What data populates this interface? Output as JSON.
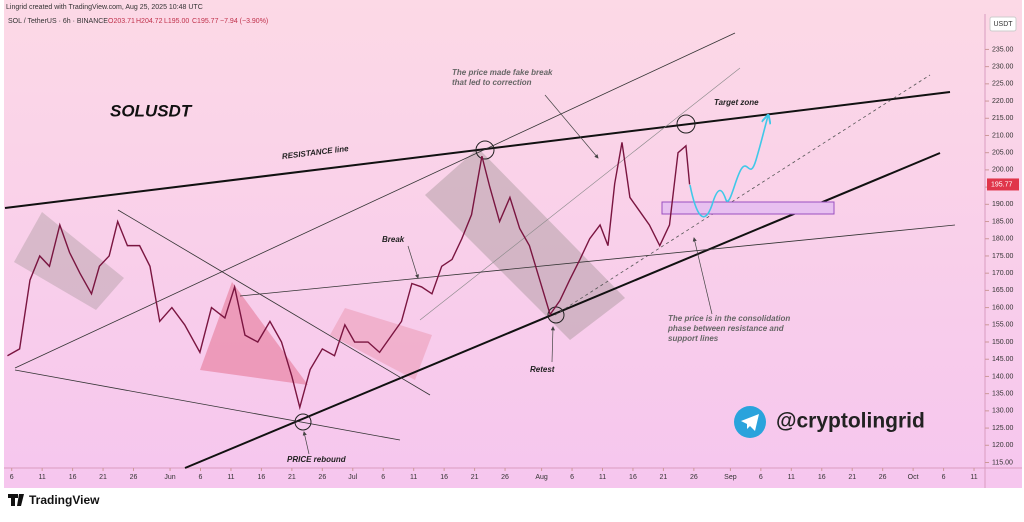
{
  "chart_data": {
    "type": "line",
    "header": "Lingrid created with TradingView.com, Aug 25, 2025 10:48 UTC",
    "symbol_line": "SOL / TetherUS · 6h · BINANCE",
    "ohlc": [
      "O203.71",
      "H204.72",
      "L195.00",
      "C195.77",
      "−7.94 (−3.90%)"
    ],
    "currency": "USDT",
    "last_price": {
      "value": 195.77,
      "label": "195.77"
    },
    "annotations": {
      "symbol": "SOLUSDT",
      "resistance": "RESISTANCE line",
      "fake_break": [
        "The price made fake break",
        "that led to correction"
      ],
      "target": "Target zone",
      "break": "Break",
      "retest": "Retest",
      "rebound": "PRICE rebound",
      "consolidation": [
        "The price is in the consolidation",
        "phase between resistance and",
        "support lines"
      ]
    },
    "watermark": "@cryptolingrid",
    "brand": "TradingView",
    "color": "#7a1540",
    "grid": false,
    "x": [
      4.3,
      6.3,
      8,
      9.6,
      11.2,
      12.9,
      14.5,
      16.2,
      18.1,
      19.4,
      21,
      22.4,
      24,
      26,
      27.7,
      29.3,
      31.3,
      33.4,
      35.9,
      37.8,
      40,
      41.6,
      43.3,
      45.4,
      47.4,
      49.3,
      51,
      52.3,
      54,
      56,
      58,
      59.7,
      61.3,
      63.5,
      65.4,
      67.4,
      69,
      70.7,
      72.3,
      74,
      75.6,
      77.3,
      78.9,
      80.5,
      82.2,
      83.5,
      85.1,
      86.8,
      88.4,
      90,
      91.7,
      93.4,
      95,
      96.6,
      98.3,
      99.9,
      101.6,
      102.9,
      104,
      105.2,
      106.5,
      108.1,
      109.7,
      111.4,
      113,
      114.4,
      115.7,
      116.3
    ],
    "values": [
      146,
      148,
      168,
      175,
      172,
      184,
      176,
      170,
      164,
      172,
      175,
      185,
      178,
      178,
      172,
      156,
      160,
      155,
      147,
      160,
      157,
      166,
      152,
      150,
      156,
      150,
      140,
      131,
      142,
      148,
      146,
      155,
      150,
      150,
      147,
      152,
      156,
      167,
      166,
      164,
      172,
      174,
      180,
      187,
      204,
      195,
      185,
      192,
      183,
      178,
      168,
      158,
      162,
      168,
      174,
      180,
      184,
      178,
      196,
      208,
      192,
      188,
      184,
      178,
      184,
      205,
      207,
      195.77
    ],
    "xlim": [
      3.9,
      164.8
    ],
    "ylim": [
      113.4,
      245
    ],
    "xticks": [
      {
        "value": 5,
        "label": "6"
      },
      {
        "value": 10,
        "label": "11"
      },
      {
        "value": 15,
        "label": "16"
      },
      {
        "value": 20,
        "label": "21"
      },
      {
        "value": 25,
        "label": "26"
      },
      {
        "value": 31,
        "label": "Jun"
      },
      {
        "value": 36,
        "label": "6"
      },
      {
        "value": 41,
        "label": "11"
      },
      {
        "value": 46,
        "label": "16"
      },
      {
        "value": 51,
        "label": "21"
      },
      {
        "value": 56,
        "label": "26"
      },
      {
        "value": 61,
        "label": "Jul"
      },
      {
        "value": 66,
        "label": "6"
      },
      {
        "value": 71,
        "label": "11"
      },
      {
        "value": 76,
        "label": "16"
      },
      {
        "value": 81,
        "label": "21"
      },
      {
        "value": 86,
        "label": "26"
      },
      {
        "value": 92,
        "label": "Aug"
      },
      {
        "value": 97,
        "label": "6"
      },
      {
        "value": 102,
        "label": "11"
      },
      {
        "value": 107,
        "label": "16"
      },
      {
        "value": 112,
        "label": "21"
      },
      {
        "value": 117,
        "label": "26"
      },
      {
        "value": 123,
        "label": "Sep"
      },
      {
        "value": 128,
        "label": "6"
      },
      {
        "value": 133,
        "label": "11"
      },
      {
        "value": 138,
        "label": "16"
      },
      {
        "value": 143,
        "label": "21"
      },
      {
        "value": 148,
        "label": "26"
      },
      {
        "value": 153,
        "label": "Oct"
      },
      {
        "value": 158,
        "label": "6"
      },
      {
        "value": 163,
        "label": "11"
      }
    ],
    "yticks": [
      {
        "value": 115,
        "label": "115.00"
      },
      {
        "value": 120,
        "label": "120.00"
      },
      {
        "value": 125,
        "label": "125.00"
      },
      {
        "value": 130,
        "label": "130.00"
      },
      {
        "value": 135,
        "label": "135.00"
      },
      {
        "value": 140,
        "label": "140.00"
      },
      {
        "value": 145,
        "label": "145.00"
      },
      {
        "value": 150,
        "label": "150.00"
      },
      {
        "value": 155,
        "label": "155.00"
      },
      {
        "value": 160,
        "label": "160.00"
      },
      {
        "value": 165,
        "label": "165.00"
      },
      {
        "value": 170,
        "label": "170.00"
      },
      {
        "value": 175,
        "label": "175.00"
      },
      {
        "value": 180,
        "label": "180.00"
      },
      {
        "value": 185,
        "label": "185.00"
      },
      {
        "value": 190,
        "label": "190.00"
      },
      {
        "value": 195,
        "label": "195.00"
      },
      {
        "value": 200,
        "label": "200.00"
      },
      {
        "value": 205,
        "label": "205.00"
      },
      {
        "value": 210,
        "label": "210.00"
      },
      {
        "value": 215,
        "label": "215.00"
      },
      {
        "value": 220,
        "label": "220.00"
      },
      {
        "value": 225,
        "label": "225.00"
      },
      {
        "value": 230,
        "label": "230.00"
      },
      {
        "value": 235,
        "label": "235.00"
      }
    ]
  }
}
